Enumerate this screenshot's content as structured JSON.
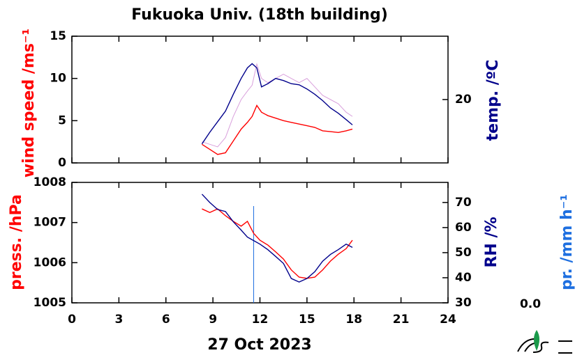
{
  "chart_data": [
    {
      "type": "line",
      "title": "Fukuoka Univ. (18th building)",
      "ylabel": "wind speed /ms⁻¹",
      "y2label": "temp. /ºC",
      "xlim": [
        0,
        24
      ],
      "ylim": [
        0,
        15
      ],
      "yticks": [
        0,
        5,
        10,
        15
      ],
      "y2lim": [
        14,
        26
      ],
      "y2ticks": [
        20
      ],
      "x": [
        8.3,
        8.8,
        9.3,
        9.8,
        10.3,
        10.8,
        11.2,
        11.5,
        11.8,
        12.1,
        12.5,
        13.0,
        13.5,
        14.0,
        14.5,
        15.0,
        15.5,
        16.0,
        16.5,
        17.0,
        17.5,
        17.9
      ],
      "series": [
        {
          "color": "#d9a0dc",
          "values": [
            2.5,
            2.2,
            1.9,
            3.0,
            5.5,
            7.5,
            8.5,
            9.2,
            11.7,
            10.0,
            9.5,
            10.0,
            10.5,
            10.0,
            9.5,
            10.0,
            9.0,
            8.0,
            7.5,
            7.0,
            6.0,
            5.5
          ]
        },
        {
          "color": "#ff0000",
          "values": [
            2.2,
            1.6,
            1.0,
            1.2,
            2.6,
            4.0,
            4.8,
            5.5,
            6.8,
            6.0,
            5.6,
            5.3,
            5.0,
            4.8,
            4.6,
            4.4,
            4.2,
            3.8,
            3.7,
            3.6,
            3.8,
            4.0
          ]
        },
        {
          "color": "#00008b",
          "axis": "y2",
          "values": [
            15.8,
            16.9,
            17.9,
            18.9,
            20.5,
            22.0,
            23.0,
            23.4,
            23.0,
            21.2,
            21.5,
            22.0,
            21.8,
            21.5,
            21.4,
            21.0,
            20.5,
            19.9,
            19.2,
            18.7,
            18.1,
            17.6
          ]
        }
      ]
    },
    {
      "type": "line",
      "ylabel": "press. /hPa",
      "y2label": "RH /%",
      "y3label": "pr. /mm h⁻¹",
      "xlabel": "27 Oct 2023",
      "xlim": [
        0,
        24
      ],
      "xticks": [
        0,
        3,
        6,
        9,
        12,
        15,
        18,
        21,
        24
      ],
      "ylim": [
        1005,
        1008
      ],
      "yticks": [
        1005,
        1006,
        1007,
        1008
      ],
      "y2lim": [
        30,
        78
      ],
      "y2ticks": [
        30,
        40,
        50,
        60,
        70
      ],
      "y3ticks": [
        {
          "value": 0,
          "label": "0.0"
        }
      ],
      "precip_x": [
        11.6
      ],
      "precip_color": "#1e6fe0",
      "x": [
        8.3,
        8.8,
        9.3,
        9.8,
        10.3,
        10.8,
        11.2,
        11.6,
        12.0,
        12.5,
        13.0,
        13.5,
        14.0,
        14.5,
        15.0,
        15.5,
        16.0,
        16.5,
        17.0,
        17.5,
        17.9
      ],
      "series": [
        {
          "color": "#ff0000",
          "values": [
            1007.34,
            1007.25,
            1007.34,
            1007.17,
            1007.03,
            1006.91,
            1007.03,
            1006.73,
            1006.56,
            1006.44,
            1006.27,
            1006.09,
            1005.82,
            1005.64,
            1005.61,
            1005.64,
            1005.82,
            1006.04,
            1006.21,
            1006.35,
            1006.56
          ]
        },
        {
          "color": "#00008b",
          "axis": "y2",
          "values": [
            73.3,
            70.0,
            67.2,
            66.4,
            62.3,
            59.0,
            56.2,
            54.8,
            53.4,
            51.2,
            48.5,
            45.7,
            39.7,
            38.3,
            39.7,
            42.4,
            46.6,
            49.3,
            51.2,
            53.4,
            52.1
          ]
        }
      ]
    }
  ]
}
